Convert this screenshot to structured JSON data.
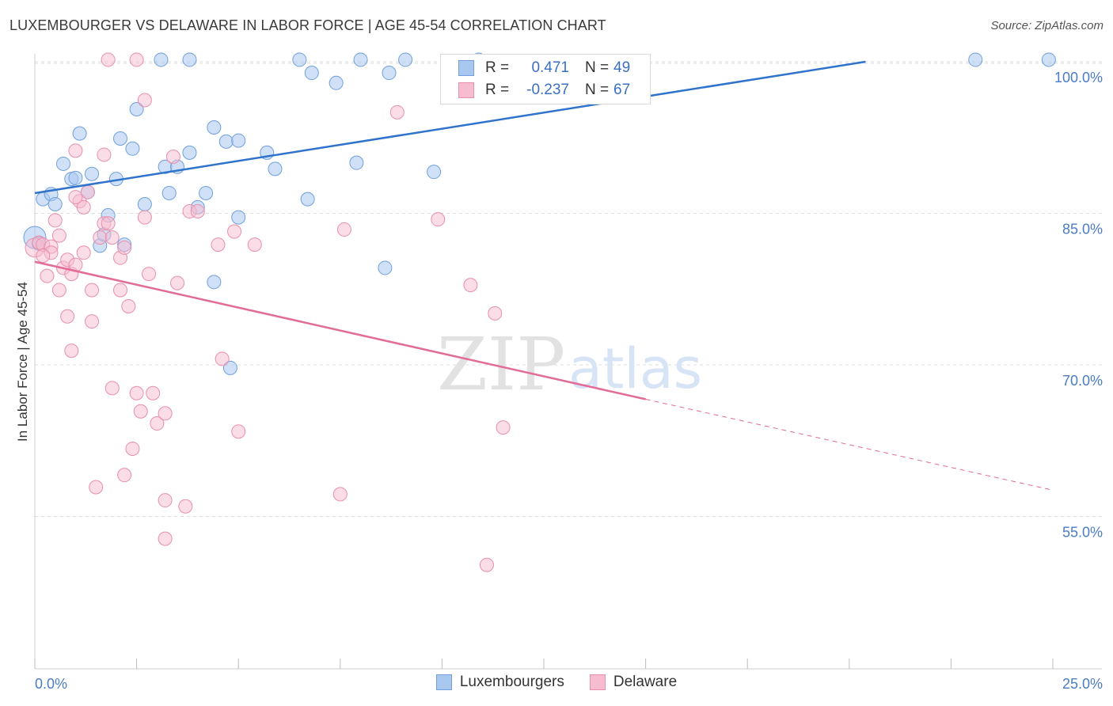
{
  "title": "LUXEMBOURGER VS DELAWARE IN LABOR FORCE | AGE 45-54 CORRELATION CHART",
  "source": "Source: ZipAtlas.com",
  "watermark": {
    "zip": "ZIP",
    "atlas": "atlas"
  },
  "legend": {
    "rows": [
      {
        "r_label": "R =",
        "r_value": "0.471",
        "n_label": "N =",
        "n_value": "49"
      },
      {
        "r_label": "R =",
        "r_value": "-0.237",
        "n_label": "N =",
        "n_value": "67"
      }
    ]
  },
  "bottom_legend": [
    "Luxembourgers",
    "Delaware"
  ],
  "colors": {
    "blue_fill": "#a9c8f0",
    "blue_edge": "#6f9fdc",
    "blue_line": "#2f73cc",
    "pink_fill": "#f7bcd0",
    "pink_edge": "#e88fab",
    "pink_line": "#e36b97",
    "grid": "#dedede",
    "tick_text": "#4a7cc7"
  },
  "chart_data": {
    "type": "scatter",
    "title": "LUXEMBOURGER VS DELAWARE IN LABOR FORCE | AGE 45-54 CORRELATION CHART",
    "xlabel": "",
    "ylabel": "In Labor Force | Age 45-54",
    "xlim": [
      0,
      25
    ],
    "ylim": [
      40,
      101.5
    ],
    "x_tick_labels": [
      "0.0%",
      "25.0%"
    ],
    "y_ticks": [
      55,
      70,
      85,
      100
    ],
    "y_tick_labels": [
      "55.0%",
      "70.0%",
      "85.0%",
      "100.0%"
    ],
    "series": [
      {
        "name": "Luxembourgers",
        "r": 0.471,
        "n": 49,
        "trend": {
          "x": [
            0,
            20.4
          ],
          "y": [
            87.0,
            100.0
          ]
        },
        "points": [
          [
            0.0,
            82.6
          ],
          [
            0.2,
            86.4
          ],
          [
            0.4,
            86.9
          ],
          [
            0.5,
            85.9
          ],
          [
            0.7,
            89.9
          ],
          [
            0.9,
            88.4
          ],
          [
            1.0,
            88.5
          ],
          [
            1.1,
            92.9
          ],
          [
            1.3,
            87.1
          ],
          [
            1.4,
            88.9
          ],
          [
            1.6,
            81.8
          ],
          [
            1.7,
            82.9
          ],
          [
            1.8,
            84.8
          ],
          [
            2.0,
            88.4
          ],
          [
            2.1,
            92.4
          ],
          [
            2.2,
            81.9
          ],
          [
            2.4,
            91.4
          ],
          [
            2.5,
            95.3
          ],
          [
            2.7,
            85.9
          ],
          [
            3.1,
            100.2
          ],
          [
            3.2,
            89.6
          ],
          [
            3.3,
            87.0
          ],
          [
            3.5,
            89.6
          ],
          [
            3.8,
            91.0
          ],
          [
            3.8,
            100.2
          ],
          [
            4.0,
            85.6
          ],
          [
            4.2,
            87.0
          ],
          [
            4.4,
            78.2
          ],
          [
            4.4,
            93.5
          ],
          [
            4.7,
            92.1
          ],
          [
            4.8,
            69.7
          ],
          [
            5.0,
            84.6
          ],
          [
            5.0,
            92.2
          ],
          [
            5.7,
            91.0
          ],
          [
            5.9,
            89.4
          ],
          [
            6.5,
            100.2
          ],
          [
            6.7,
            86.4
          ],
          [
            6.8,
            98.9
          ],
          [
            7.4,
            97.9
          ],
          [
            7.9,
            90.0
          ],
          [
            8.0,
            100.2
          ],
          [
            8.6,
            79.6
          ],
          [
            8.7,
            98.9
          ],
          [
            9.1,
            100.2
          ],
          [
            9.8,
            89.1
          ],
          [
            10.9,
            100.2
          ],
          [
            23.1,
            100.2
          ],
          [
            24.9,
            100.2
          ],
          [
            0.1,
            82.0
          ]
        ]
      },
      {
        "name": "Delaware",
        "r": -0.237,
        "n": 67,
        "trend": {
          "x": [
            0,
            15.0
          ],
          "y": [
            80.2,
            66.6
          ]
        },
        "trend_dashed": {
          "x": [
            15.0,
            25.0
          ],
          "y": [
            66.6,
            57.6
          ]
        },
        "points": [
          [
            0.0,
            81.6
          ],
          [
            0.1,
            82.1
          ],
          [
            0.2,
            81.9
          ],
          [
            0.3,
            78.8
          ],
          [
            0.4,
            81.7
          ],
          [
            0.4,
            81.1
          ],
          [
            0.5,
            84.3
          ],
          [
            0.6,
            77.4
          ],
          [
            0.7,
            79.6
          ],
          [
            0.8,
            74.8
          ],
          [
            0.8,
            80.4
          ],
          [
            0.9,
            71.4
          ],
          [
            0.9,
            79.0
          ],
          [
            1.0,
            79.9
          ],
          [
            1.0,
            91.2
          ],
          [
            1.1,
            86.2
          ],
          [
            1.2,
            85.6
          ],
          [
            1.2,
            81.1
          ],
          [
            1.3,
            87.1
          ],
          [
            1.4,
            77.4
          ],
          [
            1.4,
            74.3
          ],
          [
            1.5,
            57.9
          ],
          [
            1.6,
            82.6
          ],
          [
            1.7,
            84.0
          ],
          [
            1.7,
            90.8
          ],
          [
            1.8,
            84.0
          ],
          [
            1.8,
            100.2
          ],
          [
            1.9,
            82.6
          ],
          [
            1.9,
            67.7
          ],
          [
            2.1,
            77.4
          ],
          [
            2.1,
            80.6
          ],
          [
            2.2,
            59.1
          ],
          [
            2.2,
            81.6
          ],
          [
            2.3,
            75.8
          ],
          [
            2.4,
            61.7
          ],
          [
            2.5,
            100.2
          ],
          [
            2.5,
            67.2
          ],
          [
            2.6,
            65.4
          ],
          [
            2.7,
            84.6
          ],
          [
            2.7,
            96.2
          ],
          [
            2.8,
            79.0
          ],
          [
            2.9,
            67.2
          ],
          [
            3.0,
            64.2
          ],
          [
            3.2,
            56.6
          ],
          [
            3.2,
            65.2
          ],
          [
            3.2,
            52.8
          ],
          [
            3.4,
            90.6
          ],
          [
            3.5,
            78.1
          ],
          [
            3.7,
            56.0
          ],
          [
            3.8,
            85.2
          ],
          [
            4.0,
            85.2
          ],
          [
            4.5,
            81.9
          ],
          [
            4.6,
            70.6
          ],
          [
            4.9,
            83.2
          ],
          [
            5.0,
            63.4
          ],
          [
            5.4,
            81.9
          ],
          [
            7.5,
            57.2
          ],
          [
            7.6,
            83.4
          ],
          [
            8.9,
            95.0
          ],
          [
            9.9,
            84.4
          ],
          [
            10.7,
            77.9
          ],
          [
            11.1,
            50.2
          ],
          [
            11.3,
            75.1
          ],
          [
            11.5,
            63.8
          ],
          [
            0.2,
            80.8
          ],
          [
            1.0,
            86.6
          ],
          [
            0.6,
            82.8
          ]
        ]
      }
    ]
  }
}
